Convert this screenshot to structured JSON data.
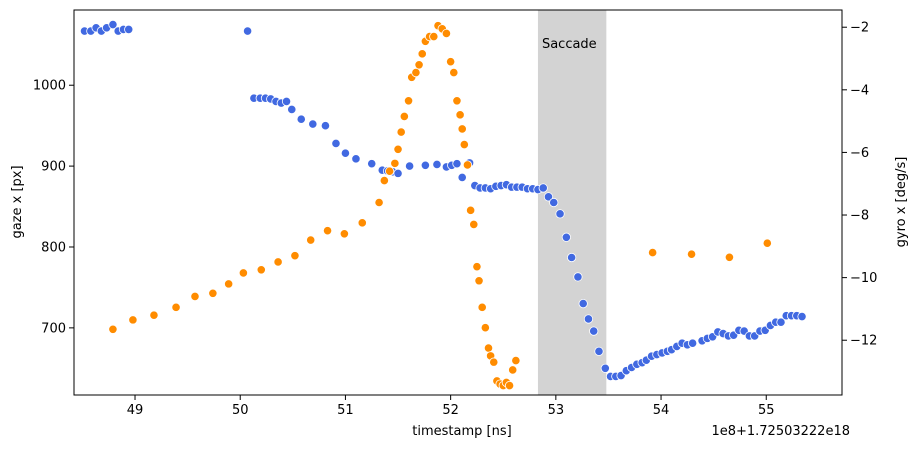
{
  "chart_data": {
    "type": "scatter",
    "title": "",
    "xlabel": "timestamp [ns]",
    "ylabel_left": "gaze x [px]",
    "ylabel_right": "gyro x [deg/s]",
    "x_offset_label": "1e8+1.72503222e18",
    "xlim": [
      48.42,
      55.72
    ],
    "ylim_left": [
      617,
      1093
    ],
    "ylim_right": [
      -13.75,
      -1.45
    ],
    "x_ticks": [
      49,
      50,
      51,
      52,
      53,
      54,
      55
    ],
    "y_ticks_left": [
      700,
      800,
      900,
      1000
    ],
    "y_ticks_right": [
      -12,
      -10,
      -8,
      -6,
      -4,
      -2
    ],
    "y_ticks_right_labels": [
      "−12",
      "−10",
      "−8",
      "−6",
      "−4",
      "−2"
    ],
    "grid": false,
    "colors": {
      "gaze": "#4169E1",
      "gyro": "#FF8C00",
      "saccade_band": "#D3D3D3"
    },
    "annotation": {
      "label": "Saccade",
      "x_start": 52.83,
      "x_end": 53.48
    },
    "series": [
      {
        "key": "gaze",
        "axis": "left",
        "points": [
          [
            48.52,
            1067
          ],
          [
            48.58,
            1067
          ],
          [
            48.63,
            1071
          ],
          [
            48.68,
            1067
          ],
          [
            48.73,
            1071
          ],
          [
            48.79,
            1075
          ],
          [
            48.84,
            1067
          ],
          [
            48.89,
            1069
          ],
          [
            48.94,
            1069
          ],
          [
            50.07,
            1067
          ],
          [
            50.13,
            984
          ],
          [
            50.19,
            984
          ],
          [
            50.24,
            984
          ],
          [
            50.29,
            983
          ],
          [
            50.34,
            980
          ],
          [
            50.39,
            978
          ],
          [
            50.44,
            980
          ],
          [
            50.49,
            970
          ],
          [
            50.58,
            958
          ],
          [
            50.69,
            952
          ],
          [
            50.81,
            950
          ],
          [
            50.91,
            928
          ],
          [
            51.0,
            916
          ],
          [
            51.1,
            909
          ],
          [
            51.25,
            903
          ],
          [
            51.35,
            895
          ],
          [
            51.4,
            894
          ],
          [
            51.45,
            893
          ],
          [
            51.5,
            891
          ],
          [
            51.61,
            900
          ],
          [
            51.76,
            901
          ],
          [
            51.87,
            902
          ],
          [
            51.96,
            899
          ],
          [
            52.01,
            901
          ],
          [
            52.06,
            903
          ],
          [
            52.11,
            886
          ],
          [
            52.18,
            904
          ],
          [
            52.23,
            876
          ],
          [
            52.28,
            873
          ],
          [
            52.33,
            873
          ],
          [
            52.38,
            872
          ],
          [
            52.43,
            875
          ],
          [
            52.48,
            876
          ],
          [
            52.53,
            877
          ],
          [
            52.58,
            874
          ],
          [
            52.63,
            874
          ],
          [
            52.68,
            874
          ],
          [
            52.73,
            872
          ],
          [
            52.78,
            872
          ],
          [
            52.83,
            871
          ],
          [
            52.88,
            873
          ],
          [
            52.93,
            862
          ],
          [
            52.98,
            855
          ],
          [
            53.04,
            841
          ],
          [
            53.1,
            812
          ],
          [
            53.15,
            787
          ],
          [
            53.21,
            763
          ],
          [
            53.26,
            730
          ],
          [
            53.31,
            711
          ],
          [
            53.36,
            696
          ],
          [
            53.41,
            671
          ],
          [
            53.47,
            650
          ],
          [
            53.52,
            640
          ],
          [
            53.57,
            640
          ],
          [
            53.62,
            641
          ],
          [
            53.67,
            647
          ],
          [
            53.72,
            651
          ],
          [
            53.77,
            655
          ],
          [
            53.82,
            657
          ],
          [
            53.86,
            660
          ],
          [
            53.91,
            665
          ],
          [
            53.96,
            667
          ],
          [
            54.01,
            669
          ],
          [
            54.06,
            671
          ],
          [
            54.1,
            673
          ],
          [
            54.15,
            677
          ],
          [
            54.2,
            681
          ],
          [
            54.25,
            679
          ],
          [
            54.3,
            681
          ],
          [
            54.39,
            684
          ],
          [
            54.44,
            687
          ],
          [
            54.49,
            689
          ],
          [
            54.54,
            695
          ],
          [
            54.59,
            693
          ],
          [
            54.64,
            690
          ],
          [
            54.69,
            691
          ],
          [
            54.74,
            697
          ],
          [
            54.79,
            696
          ],
          [
            54.84,
            690
          ],
          [
            54.89,
            690
          ],
          [
            54.94,
            696
          ],
          [
            54.99,
            697
          ],
          [
            55.04,
            703
          ],
          [
            55.09,
            707
          ],
          [
            55.14,
            707
          ],
          [
            55.19,
            715
          ],
          [
            55.24,
            715
          ],
          [
            55.29,
            715
          ],
          [
            55.34,
            714
          ]
        ]
      },
      {
        "key": "gyro",
        "axis": "right",
        "points": [
          [
            48.79,
            -11.65
          ],
          [
            48.98,
            -11.35
          ],
          [
            49.18,
            -11.2
          ],
          [
            49.39,
            -10.95
          ],
          [
            49.57,
            -10.6
          ],
          [
            49.74,
            -10.5
          ],
          [
            49.89,
            -10.2
          ],
          [
            50.03,
            -9.85
          ],
          [
            50.2,
            -9.75
          ],
          [
            50.36,
            -9.5
          ],
          [
            50.52,
            -9.3
          ],
          [
            50.67,
            -8.8
          ],
          [
            50.83,
            -8.5
          ],
          [
            50.99,
            -8.6
          ],
          [
            51.16,
            -8.25
          ],
          [
            51.32,
            -7.6
          ],
          [
            51.37,
            -6.9
          ],
          [
            51.42,
            -6.6
          ],
          [
            51.47,
            -6.35
          ],
          [
            51.5,
            -5.9
          ],
          [
            51.53,
            -5.35
          ],
          [
            51.56,
            -4.85
          ],
          [
            51.6,
            -4.35
          ],
          [
            51.63,
            -3.6
          ],
          [
            51.67,
            -3.45
          ],
          [
            51.7,
            -3.2
          ],
          [
            51.73,
            -2.85
          ],
          [
            51.76,
            -2.45
          ],
          [
            51.8,
            -2.3
          ],
          [
            51.84,
            -2.3
          ],
          [
            51.88,
            -1.95
          ],
          [
            51.92,
            -2.05
          ],
          [
            51.96,
            -2.2
          ],
          [
            52.0,
            -3.1
          ],
          [
            52.03,
            -3.45
          ],
          [
            52.06,
            -4.35
          ],
          [
            52.09,
            -4.8
          ],
          [
            52.11,
            -5.25
          ],
          [
            52.13,
            -5.75
          ],
          [
            52.16,
            -6.4
          ],
          [
            52.19,
            -7.85
          ],
          [
            52.22,
            -8.3
          ],
          [
            52.25,
            -9.65
          ],
          [
            52.27,
            -10.1
          ],
          [
            52.3,
            -10.95
          ],
          [
            52.33,
            -11.6
          ],
          [
            52.36,
            -12.25
          ],
          [
            52.38,
            -12.5
          ],
          [
            52.41,
            -12.7
          ],
          [
            52.44,
            -13.3
          ],
          [
            52.47,
            -13.4
          ],
          [
            52.5,
            -13.45
          ],
          [
            52.53,
            -13.35
          ],
          [
            52.56,
            -13.45
          ],
          [
            52.59,
            -12.95
          ],
          [
            52.62,
            -12.65
          ],
          [
            53.92,
            -9.2
          ],
          [
            54.29,
            -9.25
          ],
          [
            54.65,
            -9.35
          ],
          [
            55.01,
            -8.9
          ]
        ]
      }
    ]
  }
}
